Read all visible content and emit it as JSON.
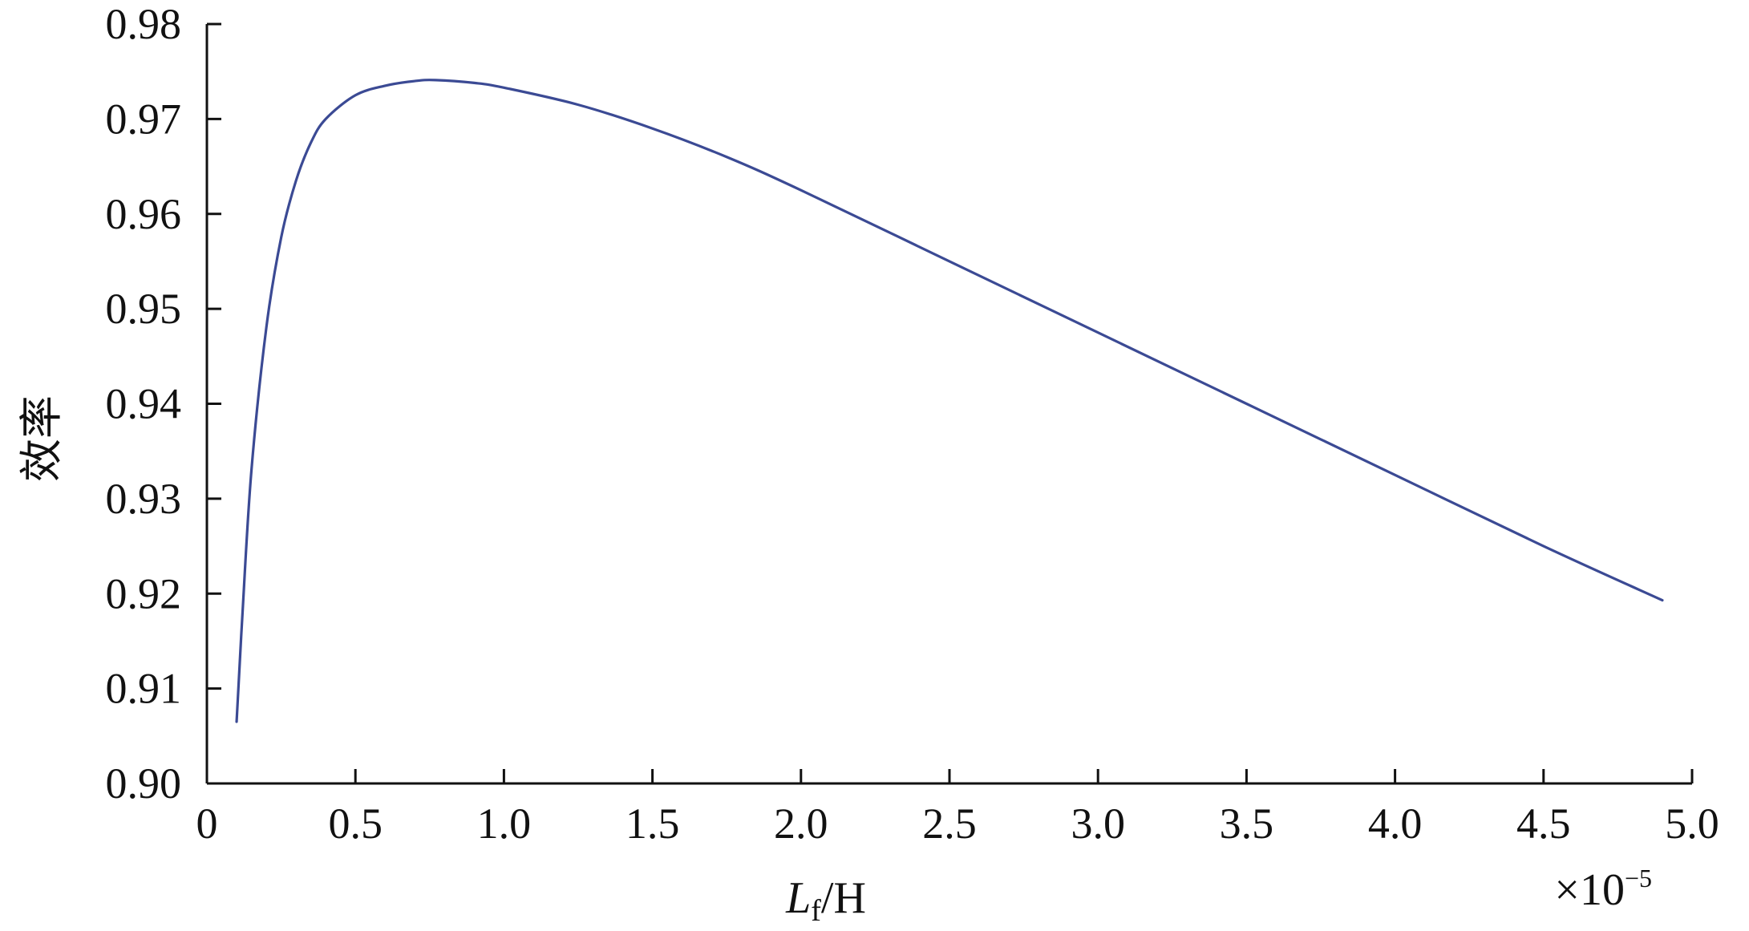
{
  "chart_data": {
    "type": "line",
    "title": "",
    "xlabel": {
      "symbol": "L",
      "subscript": "f",
      "unit": "/H"
    },
    "ylabel": "效率",
    "x_multiplier": {
      "base": "×10",
      "exponent": "−5"
    },
    "xlim": [
      0,
      5.0
    ],
    "ylim": [
      0.9,
      0.98
    ],
    "x_ticks": [
      {
        "value": 0,
        "label": "0"
      },
      {
        "value": 0.5,
        "label": "0.5"
      },
      {
        "value": 1.0,
        "label": "1.0"
      },
      {
        "value": 1.5,
        "label": "1.5"
      },
      {
        "value": 2.0,
        "label": "2.0"
      },
      {
        "value": 2.5,
        "label": "2.5"
      },
      {
        "value": 3.0,
        "label": "3.0"
      },
      {
        "value": 3.5,
        "label": "3.5"
      },
      {
        "value": 4.0,
        "label": "4.0"
      },
      {
        "value": 4.5,
        "label": "4.5"
      },
      {
        "value": 5.0,
        "label": "5.0"
      }
    ],
    "y_ticks": [
      {
        "value": 0.9,
        "label": "0.90"
      },
      {
        "value": 0.91,
        "label": "0.91"
      },
      {
        "value": 0.92,
        "label": "0.92"
      },
      {
        "value": 0.93,
        "label": "0.93"
      },
      {
        "value": 0.94,
        "label": "0.94"
      },
      {
        "value": 0.95,
        "label": "0.95"
      },
      {
        "value": 0.96,
        "label": "0.96"
      },
      {
        "value": 0.97,
        "label": "0.97"
      },
      {
        "value": 0.98,
        "label": "0.98"
      }
    ],
    "grid": false,
    "legend": "none",
    "series": [
      {
        "color": "#3b4a94",
        "points": [
          [
            0.1,
            0.9065
          ],
          [
            0.12,
            0.918
          ],
          [
            0.15,
            0.933
          ],
          [
            0.2,
            0.948
          ],
          [
            0.25,
            0.9575
          ],
          [
            0.3,
            0.9635
          ],
          [
            0.35,
            0.9675
          ],
          [
            0.4,
            0.97
          ],
          [
            0.5,
            0.9725
          ],
          [
            0.6,
            0.9735
          ],
          [
            0.7,
            0.974
          ],
          [
            0.77,
            0.9741
          ],
          [
            0.9,
            0.9738
          ],
          [
            1.0,
            0.9733
          ],
          [
            1.25,
            0.9715
          ],
          [
            1.5,
            0.969
          ],
          [
            1.75,
            0.966
          ],
          [
            2.0,
            0.9625
          ],
          [
            2.5,
            0.955
          ],
          [
            3.0,
            0.9475
          ],
          [
            3.5,
            0.94
          ],
          [
            4.0,
            0.9325
          ],
          [
            4.5,
            0.925
          ],
          [
            4.9,
            0.9193
          ]
        ]
      }
    ]
  }
}
